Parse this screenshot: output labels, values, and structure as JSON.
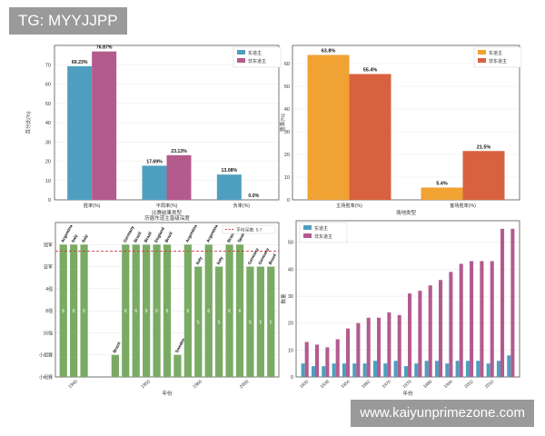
{
  "watermarks": {
    "top": "TG: MYYJJPP",
    "bottom": "www.kaiyunprimezone.com"
  },
  "colors": {
    "blue": "#4e9fbf",
    "purple": "#b45b8e",
    "orange": "#f0a232",
    "red": "#d8613f",
    "green": "#7aab64",
    "ref_line": "#d13b3b",
    "axis": "#555555",
    "grid": "#e9e9e9"
  },
  "chart_data": [
    {
      "type": "bar",
      "title": "",
      "xlabel": "比赛结果类型",
      "ylabel": "百分比(%)",
      "categories": [
        "胜率(%)",
        "平局率(%)",
        "负率(%)"
      ],
      "series": [
        {
          "name": "东道主",
          "values": [
            69.23,
            17.69,
            13.08
          ],
          "labels": [
            "69.23%",
            "17.69%",
            "13.08%"
          ]
        },
        {
          "name": "非东道主",
          "values": [
            76.87,
            23.13,
            0.0
          ],
          "labels": [
            "76.87%",
            "23.13%",
            "0.0%"
          ]
        }
      ],
      "ylim": [
        0,
        80
      ],
      "yticks": [
        0,
        10,
        20,
        30,
        40,
        50,
        60,
        70
      ],
      "legend": "top-right",
      "grid": true
    },
    {
      "type": "bar",
      "title": "",
      "xlabel": "场地类型",
      "ylabel": "胜率(%)",
      "categories": [
        "主场胜率(%)",
        "客场胜率(%)"
      ],
      "series": [
        {
          "name": "东道主",
          "values": [
            63.8,
            5.4
          ],
          "labels": [
            "63.8%",
            "5.4%"
          ]
        },
        {
          "name": "非东道主",
          "values": [
            55.4,
            21.5
          ],
          "labels": [
            "55.4%",
            "21.5%"
          ]
        }
      ],
      "ylim": [
        0,
        68
      ],
      "yticks": [
        0,
        10,
        20,
        30,
        40,
        50,
        60
      ],
      "legend": "top-right",
      "grid": true
    },
    {
      "type": "bar",
      "title": "历届东道主晋级深度",
      "xlabel": "年份",
      "ylabel": "",
      "levels": [
        "小组赛",
        "小组赛",
        "16强",
        "8强",
        "4强",
        "亚军",
        "冠军"
      ],
      "x_ticks": [
        "1940",
        "1950",
        "1960",
        "2000"
      ],
      "bars": [
        {
          "name": "Argentina",
          "level": 6,
          "inner": "6"
        },
        {
          "name": "Italy",
          "level": 6,
          "inner": "6"
        },
        {
          "name": "Italy",
          "level": 6,
          "inner": "6"
        },
        {
          "name": "",
          "level": 0,
          "inner": ""
        },
        {
          "name": "",
          "level": 0,
          "inner": ""
        },
        {
          "name": "Brazil",
          "level": 1,
          "inner": ""
        },
        {
          "name": "Germany",
          "level": 6,
          "inner": "6"
        },
        {
          "name": "Brazil",
          "level": 6,
          "inner": "6"
        },
        {
          "name": "Brazil",
          "level": 6,
          "inner": "6"
        },
        {
          "name": "England",
          "level": 6,
          "inner": "6"
        },
        {
          "name": "Brazil",
          "level": 6,
          "inner": "6"
        },
        {
          "name": "Sweden",
          "level": 1,
          "inner": ""
        },
        {
          "name": "Argentina",
          "level": 6,
          "inner": "6"
        },
        {
          "name": "Italy",
          "level": 5,
          "inner": "5"
        },
        {
          "name": "Argentina",
          "level": 6,
          "inner": "6"
        },
        {
          "name": "Italy",
          "level": 5,
          "inner": "5"
        },
        {
          "name": "Brazil",
          "level": 6,
          "inner": "6"
        },
        {
          "name": "Spain",
          "level": 6,
          "inner": "6"
        },
        {
          "name": "Germany",
          "level": 5,
          "inner": "5"
        },
        {
          "name": "Germany",
          "level": 5,
          "inner": "5"
        },
        {
          "name": "Brazil",
          "level": 5,
          "inner": "5"
        }
      ],
      "reference": {
        "label": "平均深度: 5.7",
        "value": 5.7
      },
      "ylim": [
        0,
        7
      ],
      "legend": "top-right",
      "grid": true
    },
    {
      "type": "bar",
      "title": "",
      "xlabel": "年份",
      "ylabel": "数量",
      "categories": [
        "1930",
        "1934",
        "1938",
        "1950",
        "1954",
        "1958",
        "1962",
        "1966",
        "1970",
        "1974",
        "1978",
        "1982",
        "1986",
        "1990",
        "1994",
        "1998",
        "2002",
        "2006",
        "2010",
        "2014",
        "2018"
      ],
      "x_tick_labels": [
        "1930",
        "1938",
        "1954",
        "1962",
        "1970",
        "1978",
        "1986",
        "1994",
        "2002",
        "2010"
      ],
      "series": [
        {
          "name": "东道主",
          "values": [
            5,
            4,
            4,
            5,
            5,
            5,
            5,
            6,
            5,
            6,
            4,
            5,
            6,
            6,
            5,
            6,
            6,
            6,
            5,
            6,
            8
          ]
        },
        {
          "name": "非东道主",
          "values": [
            13,
            12,
            11,
            14,
            18,
            20,
            22,
            22,
            24,
            23,
            31,
            32,
            34,
            36,
            39,
            42,
            43,
            43,
            43,
            55,
            55
          ]
        }
      ],
      "ylim": [
        0,
        58
      ],
      "yticks": [
        0,
        10,
        20,
        30,
        40,
        50
      ],
      "legend": "top-left",
      "grid": true
    }
  ]
}
